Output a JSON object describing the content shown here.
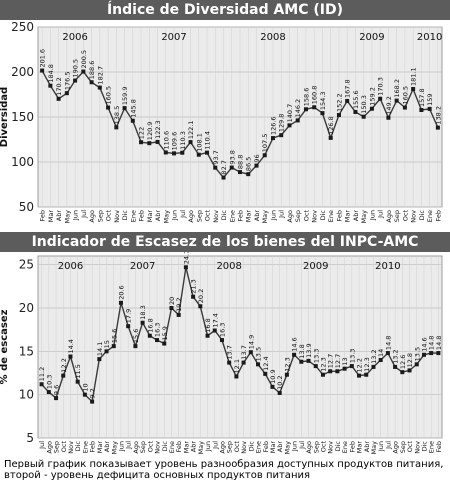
{
  "chart_data": [
    {
      "type": "line",
      "title": "Índice de Diversidad AMC (ID)",
      "ylabel": "Diversidad",
      "ylim": [
        50,
        250
      ],
      "yticks": [
        50,
        100,
        150,
        200,
        250
      ],
      "grid": true,
      "year_labels": [
        {
          "label": "2006",
          "index": 4
        },
        {
          "label": "2007",
          "index": 16
        },
        {
          "label": "2008",
          "index": 28
        },
        {
          "label": "2009",
          "index": 40
        },
        {
          "label": "2010",
          "index": 47
        }
      ],
      "categories": [
        "Feb",
        "Mar",
        "Abr",
        "May",
        "Jun",
        "Jul",
        "Ago",
        "Sep",
        "Oct",
        "Nov",
        "Dic",
        "Ene",
        "Feb",
        "Mar",
        "Abr",
        "May",
        "Jun",
        "Jul",
        "Ago",
        "Sep",
        "Oct",
        "Nov",
        "Dic",
        "Ene",
        "Feb",
        "Mar",
        "Abr",
        "May",
        "Jun",
        "Jul",
        "Ago",
        "Sep",
        "Oct",
        "Nov",
        "Dic",
        "Ene",
        "Feb",
        "Mar",
        "Abr",
        "May",
        "Jun",
        "Jul",
        "Ago",
        "Sep",
        "Oct",
        "Nov",
        "Dic",
        "Ene",
        "Feb"
      ],
      "values": [
        201.6,
        184.8,
        170.2,
        176.5,
        190.5,
        200.5,
        188.6,
        182.7,
        160.5,
        138.5,
        159.9,
        145.8,
        122.0,
        120.9,
        122.3,
        110.6,
        109.6,
        110.3,
        122.1,
        108.1,
        110.4,
        93.7,
        82.7,
        93.8,
        88.8,
        86.5,
        96.0,
        107.5,
        126.6,
        129.8,
        140.7,
        146.2,
        158.6,
        160.8,
        154.3,
        126.8,
        152.2,
        167.8,
        155.6,
        150.3,
        159.2,
        170.3,
        149.2,
        168.2,
        160.5,
        181.1,
        157.8,
        159.0,
        138.2
      ]
    },
    {
      "type": "line",
      "title": "Indicador de Escasez de los bienes del INPC-AMC",
      "ylabel": "% de escasez",
      "ylim": [
        5,
        26
      ],
      "yticks": [
        5,
        10,
        15,
        20,
        25
      ],
      "grid": true,
      "year_labels": [
        {
          "label": "2006",
          "index": 4
        },
        {
          "label": "2007",
          "index": 14
        },
        {
          "label": "2008",
          "index": 26
        },
        {
          "label": "2009",
          "index": 38
        },
        {
          "label": "2010",
          "index": 48
        }
      ],
      "categories": [
        "Jul",
        "Ago",
        "Sep",
        "Oct",
        "Nov",
        "Dic",
        "Ene",
        "Feb",
        "Mar",
        "Abr",
        "May",
        "Jun",
        "Jul",
        "Ago",
        "Sep",
        "Oct",
        "Nov",
        "Dic",
        "Ene",
        "Feb",
        "Mar",
        "Abr",
        "May",
        "Jun",
        "Jul",
        "Ago",
        "Sep",
        "Oct",
        "Nov",
        "Dic",
        "Ene",
        "Feb",
        "Mar",
        "Abr",
        "May",
        "Jun",
        "Jul",
        "Ago",
        "Sep",
        "Oct",
        "Nov",
        "Dic",
        "Ene",
        "Feb",
        "Mar",
        "Abr",
        "May",
        "Jun",
        "Jul",
        "Ago",
        "Sep",
        "Oct",
        "Nov",
        "Dic",
        "Ene",
        "Feb"
      ],
      "values": [
        11.2,
        10.3,
        9.6,
        12.2,
        14.4,
        11.5,
        10.0,
        9.2,
        14.1,
        15.0,
        15.6,
        20.6,
        17.9,
        15.6,
        18.3,
        16.8,
        16.3,
        15.9,
        20.0,
        19.2,
        24.7,
        21.3,
        20.2,
        16.8,
        17.4,
        16.3,
        13.7,
        12.1,
        13.7,
        14.9,
        13.5,
        12.4,
        10.9,
        10.2,
        12.3,
        14.6,
        13.8,
        13.9,
        13.3,
        12.3,
        12.7,
        12.7,
        13.0,
        13.3,
        12.2,
        12.3,
        13.2,
        14.0,
        14.8,
        13.2,
        12.6,
        12.8,
        13.5,
        14.6,
        14.8,
        14.8
      ]
    }
  ],
  "caption": "Первый график показывает уровень разнообразия доступных продуктов питания, второй - уровень дефицита основных продуктов питания"
}
